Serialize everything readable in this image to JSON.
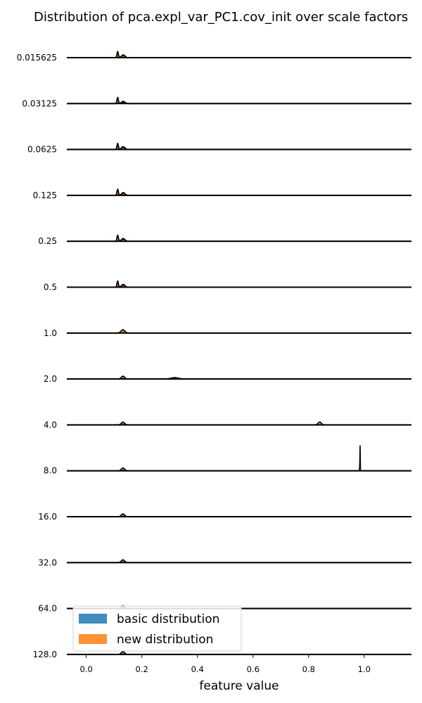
{
  "chart_data": {
    "type": "ridgeline",
    "title": "Distribution of pca.expl_var_PC1.cov_init over scale factors",
    "xlabel": "feature value",
    "ylabel": "",
    "xlim": [
      -0.07,
      1.17
    ],
    "xticks": [
      "0.0",
      "0.2",
      "0.4",
      "0.6",
      "0.8",
      "1.0"
    ],
    "categories": [
      "0.015625",
      "0.03125",
      "0.0625",
      "0.125",
      "0.25",
      "0.5",
      "1.0",
      "2.0",
      "4.0",
      "8.0",
      "16.0",
      "32.0",
      "64.0",
      "128.0"
    ],
    "series": [
      {
        "name": "basic distribution",
        "color": "#1f77b4",
        "peaks": [
          [
            {
              "x": 0.113,
              "h": 0.55,
              "w": 0.0025
            },
            {
              "x": 0.133,
              "h": 0.25,
              "w": 0.006
            }
          ],
          [
            {
              "x": 0.113,
              "h": 0.55,
              "w": 0.0025
            },
            {
              "x": 0.133,
              "h": 0.2,
              "w": 0.006
            }
          ],
          [
            {
              "x": 0.113,
              "h": 0.55,
              "w": 0.0025
            },
            {
              "x": 0.133,
              "h": 0.25,
              "w": 0.006
            }
          ],
          [
            {
              "x": 0.113,
              "h": 0.55,
              "w": 0.0025
            },
            {
              "x": 0.133,
              "h": 0.25,
              "w": 0.006
            }
          ],
          [
            {
              "x": 0.113,
              "h": 0.55,
              "w": 0.0025
            },
            {
              "x": 0.133,
              "h": 0.25,
              "w": 0.006
            }
          ],
          [
            {
              "x": 0.113,
              "h": 0.55,
              "w": 0.0025
            },
            {
              "x": 0.133,
              "h": 0.25,
              "w": 0.006
            }
          ],
          [
            {
              "x": 0.132,
              "h": 0.25,
              "w": 0.006
            }
          ],
          [
            {
              "x": 0.132,
              "h": 0.25,
              "w": 0.006
            }
          ],
          [
            {
              "x": 0.132,
              "h": 0.25,
              "w": 0.006
            }
          ],
          [
            {
              "x": 0.132,
              "h": 0.25,
              "w": 0.006
            }
          ],
          [
            {
              "x": 0.132,
              "h": 0.25,
              "w": 0.006
            }
          ],
          [
            {
              "x": 0.132,
              "h": 0.25,
              "w": 0.006
            }
          ],
          [
            {
              "x": 0.132,
              "h": 0.25,
              "w": 0.006
            }
          ],
          [
            {
              "x": 0.132,
              "h": 0.25,
              "w": 0.006
            }
          ]
        ]
      },
      {
        "name": "new distribution",
        "color": "#ff7f0e",
        "peaks": [
          [
            {
              "x": 0.113,
              "h": 0.5,
              "w": 0.0025
            },
            {
              "x": 0.133,
              "h": 0.2,
              "w": 0.006
            }
          ],
          [
            {
              "x": 0.113,
              "h": 0.5,
              "w": 0.0025
            },
            {
              "x": 0.133,
              "h": 0.15,
              "w": 0.006
            }
          ],
          [
            {
              "x": 0.113,
              "h": 0.5,
              "w": 0.0025
            },
            {
              "x": 0.133,
              "h": 0.2,
              "w": 0.006
            }
          ],
          [
            {
              "x": 0.113,
              "h": 0.5,
              "w": 0.0025
            },
            {
              "x": 0.133,
              "h": 0.2,
              "w": 0.006
            }
          ],
          [
            {
              "x": 0.113,
              "h": 0.5,
              "w": 0.0025
            },
            {
              "x": 0.133,
              "h": 0.2,
              "w": 0.006
            }
          ],
          [
            {
              "x": 0.113,
              "h": 0.5,
              "w": 0.0025
            },
            {
              "x": 0.133,
              "h": 0.2,
              "w": 0.006
            }
          ],
          [
            {
              "x": 0.132,
              "h": 0.3,
              "w": 0.007
            }
          ],
          [
            {
              "x": 0.318,
              "h": 0.12,
              "w": 0.014
            }
          ],
          [
            {
              "x": 0.84,
              "h": 0.25,
              "w": 0.006
            }
          ],
          [
            {
              "x": 0.985,
              "h": 2.5,
              "w": 0.0006
            }
          ],
          [
            {
              "x": 0.132,
              "h": 0.0,
              "w": 0.006
            }
          ],
          [
            {
              "x": 0.132,
              "h": 0.0,
              "w": 0.006
            }
          ],
          [
            {
              "x": 0.132,
              "h": 0.0,
              "w": 0.006
            }
          ],
          [
            {
              "x": 0.132,
              "h": 0.0,
              "w": 0.006
            }
          ]
        ]
      }
    ],
    "legend": {
      "position": "bottom-left",
      "entries": [
        {
          "label": "basic distribution",
          "color": "#1f77b4"
        },
        {
          "label": "new distribution",
          "color": "#ff7f0e"
        }
      ]
    },
    "grid": false
  }
}
